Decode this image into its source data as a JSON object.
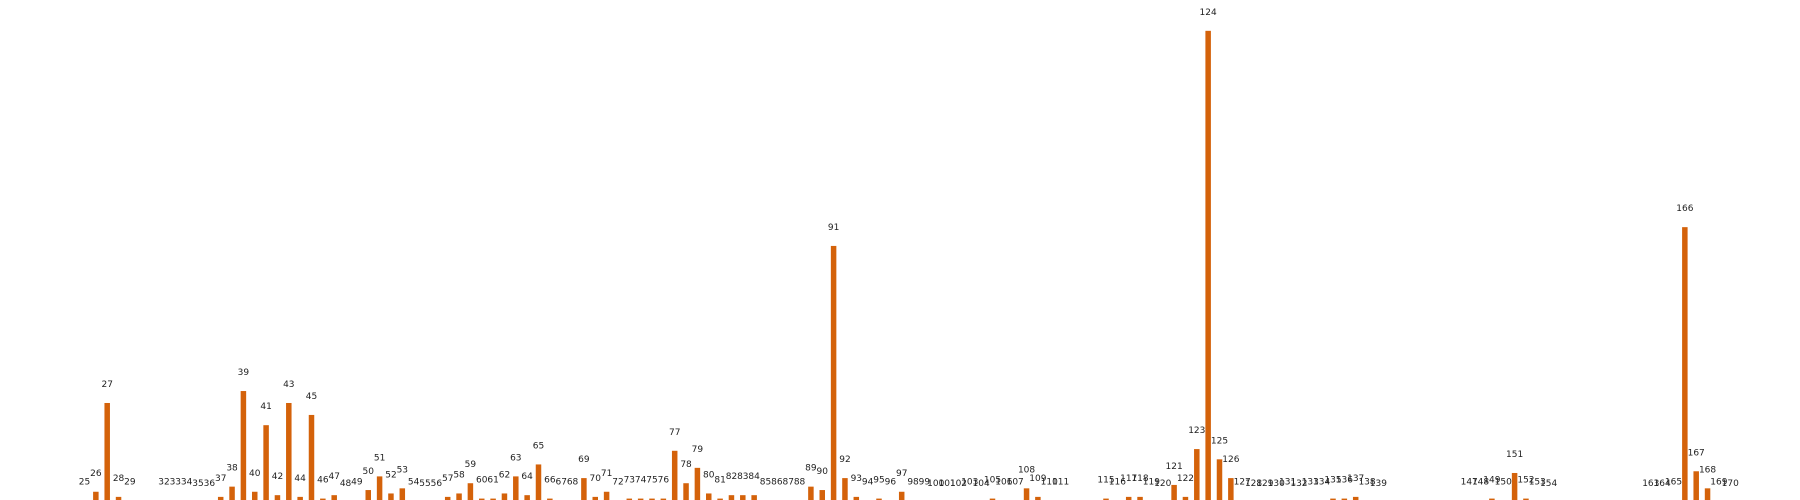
{
  "chart_data": {
    "type": "bar",
    "title": "",
    "xlabel": "",
    "ylabel": "",
    "grid": false,
    "legend": "none",
    "bar_color": "#D4620A",
    "ylim": [
      0,
      280
    ],
    "categories": [
      25,
      26,
      27,
      28,
      29,
      32,
      33,
      34,
      35,
      36,
      37,
      38,
      39,
      40,
      41,
      42,
      43,
      44,
      45,
      46,
      47,
      48,
      49,
      50,
      51,
      52,
      53,
      54,
      55,
      56,
      57,
      58,
      59,
      60,
      61,
      62,
      63,
      64,
      65,
      66,
      67,
      68,
      69,
      70,
      71,
      72,
      73,
      74,
      75,
      76,
      77,
      78,
      79,
      80,
      81,
      82,
      83,
      84,
      85,
      86,
      87,
      88,
      89,
      90,
      91,
      92,
      93,
      94,
      95,
      96,
      97,
      98,
      99,
      100,
      101,
      102,
      103,
      104,
      105,
      106,
      107,
      108,
      109,
      110,
      111,
      115,
      116,
      117,
      118,
      119,
      120,
      121,
      122,
      123,
      124,
      125,
      126,
      127,
      128,
      129,
      130,
      131,
      132,
      133,
      134,
      135,
      136,
      137,
      138,
      139,
      147,
      148,
      149,
      150,
      151,
      152,
      153,
      154,
      163,
      164,
      165,
      166,
      167,
      168,
      169,
      170
    ],
    "values": [
      1,
      6,
      58,
      3,
      1,
      1,
      1,
      1,
      0,
      0,
      3,
      9,
      65,
      6,
      45,
      4,
      58,
      3,
      51,
      2,
      4,
      0,
      1,
      7,
      15,
      5,
      8,
      1,
      0,
      0,
      3,
      5,
      11,
      2,
      2,
      5,
      15,
      4,
      22,
      2,
      1,
      1,
      14,
      3,
      6,
      1,
      2,
      2,
      2,
      2,
      30,
      11,
      20,
      5,
      2,
      4,
      4,
      4,
      1,
      1,
      1,
      1,
      9,
      7,
      150,
      14,
      3,
      1,
      2,
      1,
      6,
      1,
      1,
      0,
      0,
      0,
      1,
      0,
      2,
      1,
      1,
      8,
      3,
      1,
      1,
      2,
      1,
      3,
      3,
      1,
      0,
      10,
      3,
      31,
      276,
      25,
      14,
      1,
      0,
      0,
      0,
      1,
      0,
      1,
      1,
      2,
      2,
      3,
      1,
      0,
      1,
      1,
      2,
      1,
      17,
      2,
      1,
      0,
      0,
      0,
      1,
      161,
      18,
      8,
      1,
      0
    ]
  }
}
